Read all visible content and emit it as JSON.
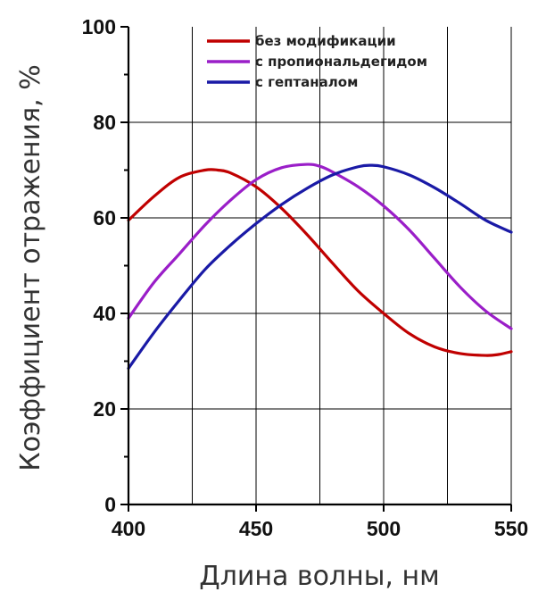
{
  "chart_data": {
    "type": "line",
    "title": "",
    "xlabel": "Длина волны, нм",
    "ylabel": "Коэффициент отражения, %",
    "xlim": [
      400,
      550
    ],
    "ylim": [
      0,
      100
    ],
    "xticks": [
      400,
      450,
      500,
      550
    ],
    "yticks": [
      0,
      20,
      40,
      60,
      80,
      100
    ],
    "x_gridlines": [
      425,
      450,
      475,
      500,
      525
    ],
    "y_gridlines": [
      20,
      40,
      60,
      80
    ],
    "grid": true,
    "legend_position": "top-center",
    "series": [
      {
        "name": "без модификации",
        "color": "#c00000",
        "x": [
          400,
          410,
          420,
          430,
          435,
          440,
          450,
          460,
          470,
          480,
          490,
          500,
          510,
          520,
          530,
          540,
          545,
          550
        ],
        "y": [
          59.5,
          64.5,
          68.5,
          70.0,
          70.0,
          69.4,
          66.5,
          62.0,
          56.5,
          50.5,
          44.7,
          40.0,
          35.8,
          33.0,
          31.6,
          31.2,
          31.4,
          32.0
        ]
      },
      {
        "name": "с пропиональдегидом",
        "color": "#9a1ec8",
        "x": [
          400,
          410,
          420,
          430,
          440,
          450,
          460,
          470,
          475,
          480,
          490,
          500,
          510,
          520,
          530,
          540,
          550
        ],
        "y": [
          39.0,
          46.5,
          52.5,
          58.5,
          63.7,
          68.0,
          70.5,
          71.2,
          70.8,
          69.6,
          66.5,
          62.5,
          57.5,
          51.5,
          45.5,
          40.5,
          36.8
        ]
      },
      {
        "name": "с гептаналом",
        "color": "#1a1aa6",
        "x": [
          400,
          410,
          420,
          430,
          440,
          450,
          460,
          470,
          480,
          490,
          495,
          500,
          510,
          520,
          530,
          540,
          550
        ],
        "y": [
          28.5,
          36.0,
          42.8,
          49.2,
          54.3,
          58.8,
          62.8,
          66.2,
          69.0,
          70.7,
          71.0,
          70.7,
          69.0,
          66.3,
          63.0,
          59.5,
          57.0
        ]
      }
    ]
  }
}
